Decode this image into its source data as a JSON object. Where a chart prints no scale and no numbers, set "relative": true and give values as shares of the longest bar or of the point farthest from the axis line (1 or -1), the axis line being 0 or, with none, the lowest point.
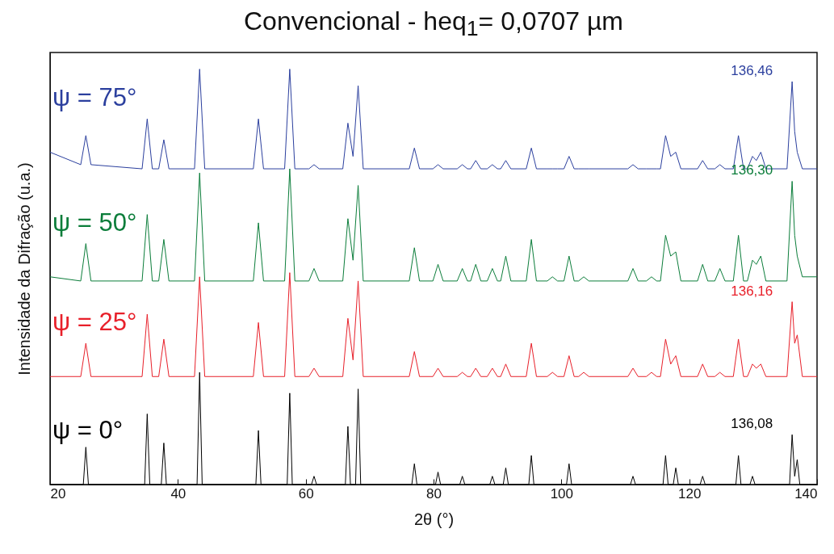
{
  "chart_data": {
    "type": "line",
    "title": "Convencional - heq$_{1}$= 0,0707 µm",
    "xlabel": "2θ (°)",
    "ylabel": "Intensidade da Difração (u.a.)",
    "relative": true,
    "xlim": [
      20,
      140
    ],
    "xticks": [
      20,
      40,
      60,
      80,
      100,
      120,
      140
    ],
    "grid": false,
    "marker": "none",
    "line_style": "solid",
    "series": [
      {
        "name": "ψ = 75°",
        "color": "#2b3f9e",
        "x": [
          20,
          24.8,
          25.6,
          26.4,
          34.4,
          35.2,
          36.0,
          37.0,
          37.8,
          38.6,
          42.6,
          43.4,
          44.2,
          51.8,
          52.6,
          53.4,
          56.7,
          57.5,
          58.3,
          60.5,
          61.3,
          62.1,
          65.8,
          66.6,
          67.4,
          68.2,
          69.0,
          76.2,
          77.0,
          77.8,
          79.9,
          80.7,
          81.5,
          83.7,
          84.5,
          85.3,
          85.8,
          86.6,
          87.4,
          88.4,
          89.2,
          90.0,
          90.5,
          91.3,
          92.1,
          94.5,
          95.3,
          96.1,
          97.8,
          98.6,
          99.4,
          100.4,
          101.2,
          102.0,
          102.7,
          103.5,
          104.3,
          110.4,
          111.2,
          112.0,
          113.3,
          114.1,
          114.9,
          115.5,
          116.3,
          117.1,
          117.9,
          118.7,
          121.3,
          122.1,
          122.9,
          124.0,
          124.8,
          125.6,
          126.9,
          127.7,
          128.5,
          129.1,
          129.9,
          130.5,
          131.2,
          132.0,
          135.3,
          136.1,
          136.5,
          136.9,
          137.7,
          140
        ],
        "values": [
          0.8,
          0.77,
          0.84,
          0.77,
          0.76,
          0.88,
          0.76,
          0.76,
          0.83,
          0.76,
          0.76,
          1.0,
          0.76,
          0.76,
          0.88,
          0.76,
          0.76,
          1.0,
          0.76,
          0.76,
          0.77,
          0.76,
          0.76,
          0.87,
          0.79,
          0.96,
          0.76,
          0.76,
          0.81,
          0.76,
          0.76,
          0.77,
          0.76,
          0.76,
          0.77,
          0.76,
          0.76,
          0.78,
          0.76,
          0.76,
          0.77,
          0.76,
          0.76,
          0.78,
          0.76,
          0.76,
          0.81,
          0.76,
          0.76,
          0.76,
          0.76,
          0.76,
          0.79,
          0.76,
          0.76,
          0.76,
          0.76,
          0.76,
          0.77,
          0.76,
          0.76,
          0.76,
          0.76,
          0.76,
          0.84,
          0.79,
          0.8,
          0.76,
          0.76,
          0.78,
          0.76,
          0.76,
          0.77,
          0.76,
          0.76,
          0.84,
          0.76,
          0.76,
          0.79,
          0.78,
          0.8,
          0.76,
          0.76,
          0.97,
          0.85,
          0.8,
          0.76,
          0.76
        ]
      },
      {
        "name": "ψ = 50°",
        "color": "#0b7d3a",
        "x": [
          20,
          24.8,
          25.6,
          26.4,
          34.4,
          35.2,
          36.0,
          37.0,
          37.8,
          38.6,
          42.6,
          43.4,
          44.2,
          51.8,
          52.6,
          53.4,
          56.7,
          57.5,
          58.3,
          60.5,
          61.3,
          62.1,
          65.8,
          66.6,
          67.4,
          68.2,
          69.0,
          76.2,
          77.0,
          77.8,
          79.9,
          80.7,
          81.5,
          83.7,
          84.5,
          85.3,
          85.8,
          86.6,
          87.4,
          88.4,
          89.2,
          90.0,
          90.5,
          91.3,
          92.1,
          94.5,
          95.3,
          96.1,
          97.8,
          98.6,
          99.4,
          100.4,
          101.2,
          102.0,
          102.7,
          103.5,
          104.3,
          110.4,
          111.2,
          112.0,
          113.3,
          114.1,
          114.9,
          115.5,
          116.3,
          117.1,
          117.9,
          118.7,
          121.3,
          122.1,
          122.9,
          124.0,
          124.8,
          125.6,
          126.9,
          127.7,
          128.5,
          129.1,
          129.9,
          130.5,
          131.2,
          132.0,
          135.3,
          136.1,
          136.5,
          136.9,
          137.7,
          140
        ],
        "values": [
          0.5,
          0.49,
          0.58,
          0.49,
          0.49,
          0.65,
          0.49,
          0.49,
          0.59,
          0.49,
          0.49,
          0.75,
          0.49,
          0.49,
          0.63,
          0.49,
          0.49,
          0.76,
          0.49,
          0.49,
          0.52,
          0.49,
          0.49,
          0.64,
          0.54,
          0.72,
          0.49,
          0.49,
          0.57,
          0.49,
          0.49,
          0.53,
          0.49,
          0.49,
          0.52,
          0.49,
          0.49,
          0.53,
          0.49,
          0.49,
          0.52,
          0.49,
          0.49,
          0.55,
          0.49,
          0.49,
          0.59,
          0.49,
          0.49,
          0.5,
          0.49,
          0.49,
          0.55,
          0.49,
          0.49,
          0.5,
          0.49,
          0.49,
          0.52,
          0.49,
          0.49,
          0.5,
          0.49,
          0.49,
          0.6,
          0.55,
          0.56,
          0.49,
          0.49,
          0.53,
          0.49,
          0.49,
          0.52,
          0.49,
          0.49,
          0.6,
          0.49,
          0.49,
          0.54,
          0.53,
          0.55,
          0.49,
          0.49,
          0.73,
          0.6,
          0.55,
          0.5,
          0.5
        ]
      },
      {
        "name": "ψ = 25°",
        "color": "#e8202a",
        "x": [
          20,
          24.8,
          25.6,
          26.4,
          34.4,
          35.2,
          36.0,
          37.0,
          37.8,
          38.6,
          42.6,
          43.4,
          44.2,
          51.8,
          52.6,
          53.4,
          56.7,
          57.5,
          58.3,
          60.5,
          61.3,
          62.1,
          65.8,
          66.6,
          67.4,
          68.2,
          69.0,
          76.2,
          77.0,
          77.8,
          79.9,
          80.7,
          81.5,
          83.7,
          84.5,
          85.3,
          85.8,
          86.6,
          87.4,
          88.4,
          89.2,
          90.0,
          90.5,
          91.3,
          92.1,
          94.5,
          95.3,
          96.1,
          97.8,
          98.6,
          99.4,
          100.4,
          101.2,
          102.0,
          102.7,
          103.5,
          104.3,
          110.4,
          111.2,
          112.0,
          113.3,
          114.1,
          114.9,
          115.5,
          116.3,
          117.1,
          117.9,
          118.7,
          121.3,
          122.1,
          122.9,
          124.0,
          124.8,
          125.6,
          126.9,
          127.7,
          128.5,
          129.1,
          129.9,
          130.5,
          131.2,
          132.0,
          135.3,
          136.1,
          136.5,
          136.9,
          137.7,
          140
        ],
        "values": [
          0.26,
          0.26,
          0.34,
          0.26,
          0.26,
          0.41,
          0.26,
          0.26,
          0.35,
          0.26,
          0.26,
          0.5,
          0.26,
          0.26,
          0.39,
          0.26,
          0.26,
          0.51,
          0.26,
          0.26,
          0.28,
          0.26,
          0.26,
          0.4,
          0.3,
          0.49,
          0.26,
          0.26,
          0.32,
          0.26,
          0.26,
          0.28,
          0.26,
          0.26,
          0.27,
          0.26,
          0.26,
          0.28,
          0.26,
          0.26,
          0.28,
          0.26,
          0.26,
          0.29,
          0.26,
          0.26,
          0.34,
          0.26,
          0.26,
          0.27,
          0.26,
          0.26,
          0.31,
          0.26,
          0.26,
          0.27,
          0.26,
          0.26,
          0.28,
          0.26,
          0.26,
          0.27,
          0.26,
          0.26,
          0.35,
          0.29,
          0.31,
          0.26,
          0.26,
          0.29,
          0.26,
          0.26,
          0.27,
          0.26,
          0.26,
          0.35,
          0.26,
          0.26,
          0.29,
          0.28,
          0.29,
          0.26,
          0.26,
          0.44,
          0.34,
          0.36,
          0.26,
          0.26
        ]
      },
      {
        "name": "ψ = 0°",
        "color": "#000000",
        "x": [
          20,
          25.2,
          25.6,
          26.0,
          34.8,
          35.2,
          35.6,
          37.4,
          37.8,
          38.2,
          43.0,
          43.4,
          43.8,
          52.2,
          52.6,
          53.0,
          57.1,
          57.5,
          57.9,
          60.9,
          61.3,
          61.7,
          66.2,
          66.6,
          67.0,
          67.8,
          68.2,
          68.6,
          76.6,
          77.0,
          77.4,
          80.3,
          80.7,
          81.1,
          84.1,
          84.5,
          84.9,
          88.8,
          89.2,
          89.6,
          90.9,
          91.3,
          91.7,
          94.9,
          95.3,
          95.7,
          100.8,
          101.2,
          101.6,
          110.8,
          111.2,
          111.6,
          115.9,
          116.3,
          116.7,
          117.5,
          117.9,
          118.3,
          121.7,
          122.1,
          122.5,
          127.3,
          127.7,
          128.1,
          129.5,
          129.9,
          130.3,
          135.7,
          136.1,
          136.5,
          136.9,
          137.3,
          140
        ],
        "values": [
          0,
          0,
          0.09,
          0,
          0,
          0.17,
          0,
          0,
          0.1,
          0,
          0,
          0.27,
          0,
          0,
          0.13,
          0,
          0,
          0.22,
          0,
          0,
          0.02,
          0,
          0,
          0.14,
          0,
          0,
          0.23,
          0,
          0,
          0.05,
          0,
          0,
          0.03,
          0,
          0,
          0.02,
          0,
          0,
          0.02,
          0,
          0,
          0.04,
          0,
          0,
          0.07,
          0,
          0,
          0.05,
          0,
          0,
          0.02,
          0,
          0,
          0.07,
          0,
          0,
          0.04,
          0,
          0,
          0.02,
          0,
          0,
          0.07,
          0,
          0,
          0.02,
          0,
          0,
          0.12,
          0.02,
          0.06,
          0,
          0
        ]
      }
    ],
    "annotations": [
      "136,46",
      "136,30",
      "136,16",
      "136,08"
    ]
  }
}
